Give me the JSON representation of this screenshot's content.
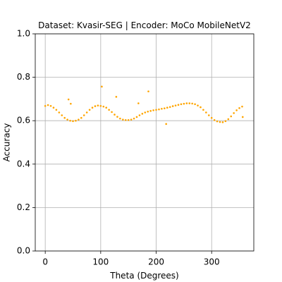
{
  "chart_data": {
    "type": "scatter",
    "title": "Dataset: Kvasir-SEG | Encoder: MoCo MobileNetV2",
    "xlabel": "Theta (Degrees)",
    "ylabel": "Accuracy",
    "x": [
      0,
      5,
      10,
      15,
      20,
      25,
      30,
      35,
      40,
      45,
      50,
      55,
      60,
      65,
      70,
      75,
      80,
      85,
      90,
      95,
      100,
      105,
      110,
      115,
      120,
      125,
      130,
      135,
      140,
      145,
      150,
      155,
      160,
      165,
      170,
      175,
      180,
      185,
      190,
      195,
      200,
      205,
      210,
      215,
      220,
      225,
      230,
      235,
      240,
      245,
      250,
      255,
      260,
      265,
      270,
      275,
      280,
      285,
      290,
      295,
      300,
      305,
      310,
      315,
      320,
      325,
      330,
      335,
      340,
      345,
      350,
      355,
      42,
      46,
      102,
      128,
      168,
      186,
      218,
      356
    ],
    "values": [
      0.668,
      0.672,
      0.668,
      0.66,
      0.65,
      0.638,
      0.625,
      0.613,
      0.605,
      0.6,
      0.598,
      0.6,
      0.605,
      0.613,
      0.625,
      0.638,
      0.65,
      0.66,
      0.667,
      0.67,
      0.668,
      0.665,
      0.66,
      0.65,
      0.64,
      0.628,
      0.618,
      0.61,
      0.605,
      0.603,
      0.603,
      0.605,
      0.61,
      0.617,
      0.625,
      0.632,
      0.638,
      0.642,
      0.645,
      0.648,
      0.65,
      0.652,
      0.655,
      0.657,
      0.66,
      0.663,
      0.667,
      0.67,
      0.673,
      0.676,
      0.678,
      0.68,
      0.68,
      0.679,
      0.676,
      0.67,
      0.662,
      0.65,
      0.638,
      0.625,
      0.613,
      0.603,
      0.597,
      0.594,
      0.593,
      0.598,
      0.607,
      0.62,
      0.635,
      0.648,
      0.658,
      0.665,
      0.698,
      0.678,
      0.757,
      0.71,
      0.68,
      0.735,
      0.585,
      0.617
    ],
    "color": "#ffa500",
    "xlim": [
      -18,
      376
    ],
    "ylim": [
      0,
      1
    ],
    "xticks": [
      0,
      100,
      200,
      300
    ],
    "yticks": [
      {
        "value": 0,
        "label": "0.0"
      },
      {
        "value": 0.2,
        "label": "0.2"
      },
      {
        "value": 0.4,
        "label": "0.4"
      },
      {
        "value": 0.6,
        "label": "0.6"
      },
      {
        "value": 0.8,
        "label": "0.8"
      },
      {
        "value": 1,
        "label": "1.0"
      }
    ],
    "grid": true
  }
}
